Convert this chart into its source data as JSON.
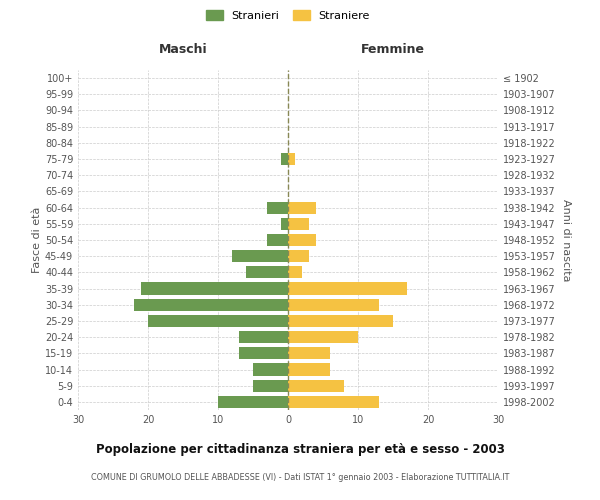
{
  "age_groups": [
    "100+",
    "95-99",
    "90-94",
    "85-89",
    "80-84",
    "75-79",
    "70-74",
    "65-69",
    "60-64",
    "55-59",
    "50-54",
    "45-49",
    "40-44",
    "35-39",
    "30-34",
    "25-29",
    "20-24",
    "15-19",
    "10-14",
    "5-9",
    "0-4"
  ],
  "birth_years": [
    "≤ 1902",
    "1903-1907",
    "1908-1912",
    "1913-1917",
    "1918-1922",
    "1923-1927",
    "1928-1932",
    "1933-1937",
    "1938-1942",
    "1943-1947",
    "1948-1952",
    "1953-1957",
    "1958-1962",
    "1963-1967",
    "1968-1972",
    "1973-1977",
    "1978-1982",
    "1983-1987",
    "1988-1992",
    "1993-1997",
    "1998-2002"
  ],
  "males": [
    0,
    0,
    0,
    0,
    0,
    1,
    0,
    0,
    3,
    1,
    3,
    8,
    6,
    21,
    22,
    20,
    7,
    7,
    5,
    5,
    10
  ],
  "females": [
    0,
    0,
    0,
    0,
    0,
    1,
    0,
    0,
    4,
    3,
    4,
    3,
    2,
    17,
    13,
    15,
    10,
    6,
    6,
    8,
    13
  ],
  "male_color": "#6a9a50",
  "female_color": "#f5c242",
  "background_color": "#ffffff",
  "grid_color": "#cccccc",
  "title": "Popolazione per cittadinanza straniera per età e sesso - 2003",
  "subtitle": "COMUNE DI GRUMOLO DELLE ABBADESSE (VI) - Dati ISTAT 1° gennaio 2003 - Elaborazione TUTTITALIA.IT",
  "xlabel_left": "Maschi",
  "xlabel_right": "Femmine",
  "ylabel_left": "Fasce di età",
  "ylabel_right": "Anni di nascita",
  "legend_male": "Stranieri",
  "legend_female": "Straniere",
  "xlim": 30,
  "bar_height": 0.75
}
